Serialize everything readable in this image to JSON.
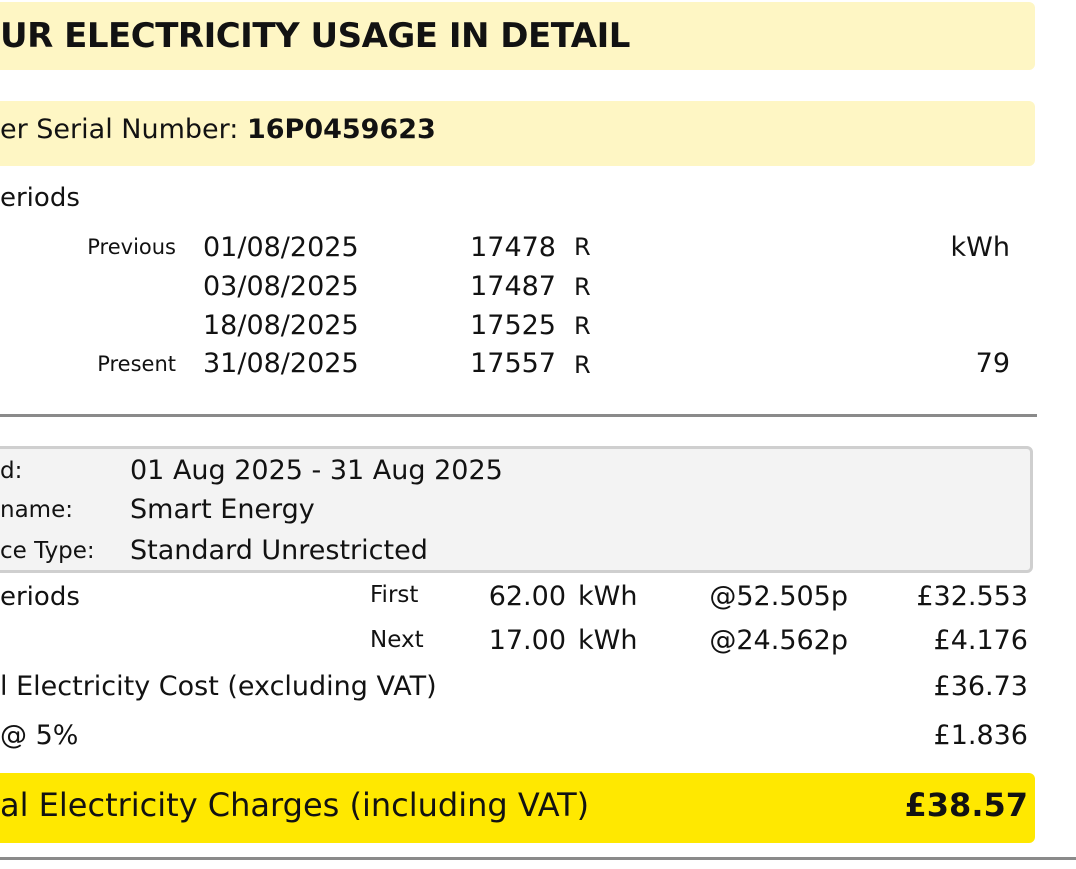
{
  "title": "UR ELECTRICITY USAGE IN DETAIL",
  "meter": {
    "label": "er Serial Number: ",
    "value": "16P0459623"
  },
  "readings_section": {
    "label": "eriods",
    "unit_header": "kWh",
    "rows": [
      {
        "tag": "Previous",
        "date": "01/08/2025",
        "reading": "17478",
        "type": "R",
        "kwh": ""
      },
      {
        "tag": "",
        "date": "03/08/2025",
        "reading": "17487",
        "type": "R",
        "kwh": ""
      },
      {
        "tag": "",
        "date": "18/08/2025",
        "reading": "17525",
        "type": "R",
        "kwh": ""
      },
      {
        "tag": "Present",
        "date": "31/08/2025",
        "reading": "17557",
        "type": "R",
        "kwh": "79"
      }
    ]
  },
  "details": {
    "period_label": "d:",
    "period_value": "01 Aug 2025 - 31 Aug 2025",
    "tariff_label": "name:",
    "tariff_value": "Smart Energy",
    "service_label": "ce Type:",
    "service_value": "Standard Unrestricted"
  },
  "charges": {
    "label": "eriods",
    "rows": [
      {
        "tier": "First",
        "qty": "62.00",
        "unit": "kWh",
        "rate": "@52.505p",
        "amount": "£32.553"
      },
      {
        "tier": "Next",
        "qty": "17.00",
        "unit": "kWh",
        "rate": "@24.562p",
        "amount": "£4.176"
      }
    ],
    "subtotal_label": "l Electricity Cost (excluding VAT)",
    "subtotal_value": "£36.73",
    "vat_label": "@ 5%",
    "vat_value": "£1.836",
    "total_label": "al Electricity Charges (including VAT)",
    "total_value": "£38.57"
  },
  "colors": {
    "highlight_light": "#fef6c4",
    "highlight_total": "#ffe800",
    "box_bg": "#f3f3f3"
  }
}
